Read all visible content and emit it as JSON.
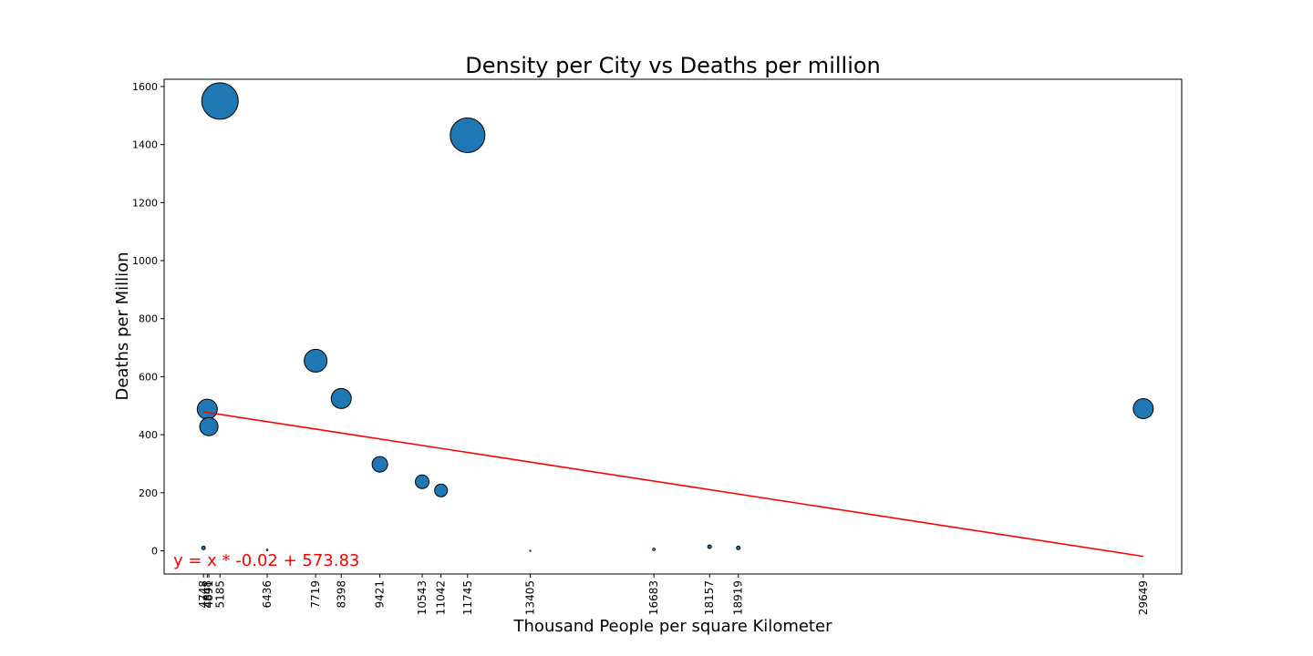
{
  "chart_data": {
    "type": "scatter",
    "title": "Density per City vs Deaths per million",
    "xlabel": "Thousand People per square Kilometer",
    "ylabel": "Deaths per Million",
    "xlim": [
      3705,
      30667
    ],
    "ylim": [
      -80,
      1625
    ],
    "yticks": [
      0,
      200,
      400,
      600,
      800,
      1000,
      1200,
      1400,
      1600
    ],
    "xticks": [
      4748,
      4848,
      4891,
      5185,
      6436,
      7719,
      8398,
      9421,
      10543,
      11042,
      11745,
      13405,
      16683,
      18157,
      18919,
      29649
    ],
    "xtick_labels": [
      "4748",
      "4848",
      "4891",
      "5185",
      "6436",
      "7719",
      "8398",
      "9421",
      "10543",
      "11042",
      "11745",
      "13405",
      "16683",
      "18157",
      "18919",
      "29649"
    ],
    "points": [
      {
        "x": 4748,
        "y": 10,
        "size": 4
      },
      {
        "x": 4848,
        "y": 488,
        "size": 22
      },
      {
        "x": 4891,
        "y": 428,
        "size": 20
      },
      {
        "x": 5185,
        "y": 1550,
        "size": 40
      },
      {
        "x": 6436,
        "y": 3,
        "size": 2
      },
      {
        "x": 7719,
        "y": 655,
        "size": 25
      },
      {
        "x": 8398,
        "y": 525,
        "size": 22
      },
      {
        "x": 9421,
        "y": 298,
        "size": 17
      },
      {
        "x": 10543,
        "y": 238,
        "size": 15
      },
      {
        "x": 11042,
        "y": 208,
        "size": 14
      },
      {
        "x": 11745,
        "y": 1432,
        "size": 38
      },
      {
        "x": 13405,
        "y": 0,
        "size": 1
      },
      {
        "x": 16683,
        "y": 5,
        "size": 3
      },
      {
        "x": 18157,
        "y": 14,
        "size": 4
      },
      {
        "x": 18919,
        "y": 10,
        "size": 4
      },
      {
        "x": 29649,
        "y": 490,
        "size": 22
      }
    ],
    "regression": {
      "slope": -0.02,
      "intercept": 573.83,
      "x_range": [
        4748,
        29649
      ],
      "equation": "y = x * -0.02 + 573.83"
    },
    "grid": false
  },
  "colors": {
    "marker": "#1f77b4",
    "marker_edge": "#000000",
    "regression_line": "#ff0000",
    "equation_text": "#ff0000"
  }
}
